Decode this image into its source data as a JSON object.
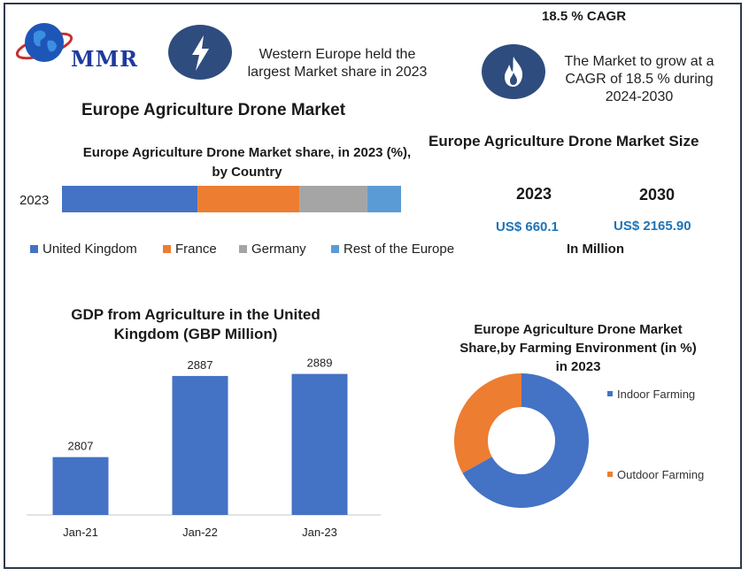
{
  "brand": {
    "logo_text": "MMR"
  },
  "header": {
    "cagr_title": "18.5 % CAGR",
    "western_note": [
      "Western Europe held the",
      "largest Market share in 2023"
    ],
    "cagr_note": [
      "The Market to grow at a",
      "CAGR of 18.5 % during",
      "2024-2030"
    ],
    "main_title": "Europe Agriculture Drone Market"
  },
  "icons": {
    "left": "lightning-bolt-icon",
    "right": "flame-icon"
  },
  "colors": {
    "uk": "#4472c4",
    "france": "#ed7d31",
    "germany": "#a5a5a5",
    "rest": "#5b9bd5",
    "accent_blue": "#1f73b7",
    "icon_bg": "#2f4c7e"
  },
  "market_size": {
    "title": "Europe Agriculture Drone Market Size",
    "years": [
      "2023",
      "2030"
    ],
    "values": [
      "US$ 660.1",
      "US$ 2165.90"
    ],
    "unit": "In Million"
  },
  "chart_data": [
    {
      "type": "bar",
      "orientation": "horizontal-stacked",
      "title": [
        "Europe Agriculture Drone Market share, in 2023 (%),",
        "by Country"
      ],
      "categories": [
        "2023"
      ],
      "series": [
        {
          "name": "United Kingdom",
          "values": [
            40
          ]
        },
        {
          "name": "France",
          "values": [
            30
          ]
        },
        {
          "name": "Germany",
          "values": [
            20
          ]
        },
        {
          "name": "Rest of the Europe",
          "values": [
            10
          ]
        }
      ],
      "xlim": [
        0,
        100
      ],
      "legend": "bottom"
    },
    {
      "type": "bar",
      "title": [
        "GDP from Agriculture in the United",
        "Kingdom (GBP Million)"
      ],
      "categories": [
        "Jan-21",
        "Jan-22",
        "Jan-23"
      ],
      "values": [
        2807,
        2887,
        2889
      ],
      "ylim": [
        2750,
        2900
      ],
      "data_labels": true
    },
    {
      "type": "pie",
      "style": "donut",
      "title": [
        "Europe Agriculture Drone Market",
        "Share,by Farming Environment (in %)",
        "in 2023"
      ],
      "categories": [
        "Indoor Farming",
        "Outdoor Farming"
      ],
      "values": [
        67,
        33
      ],
      "legend": "right"
    }
  ]
}
